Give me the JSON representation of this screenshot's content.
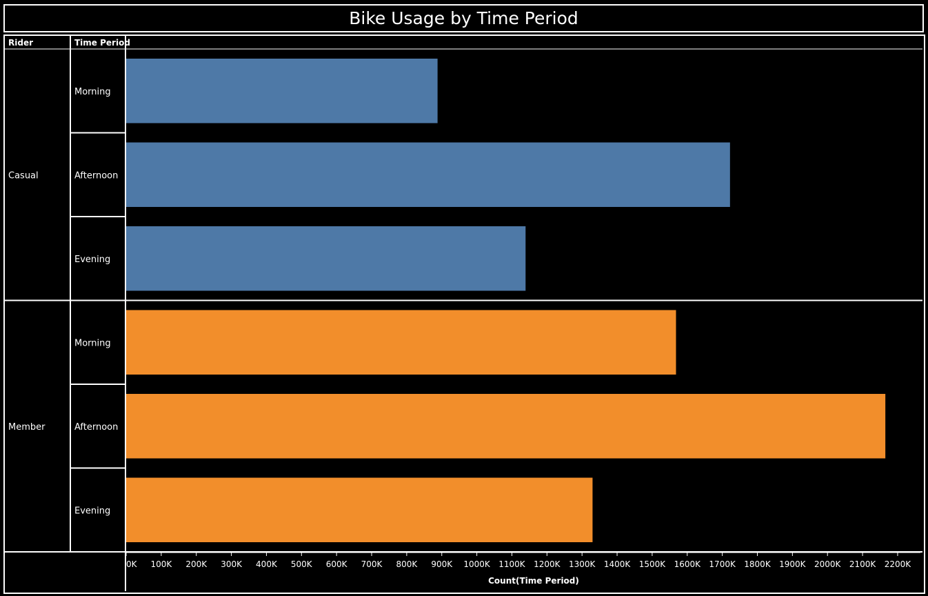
{
  "chart_data": {
    "type": "bar",
    "orientation": "horizontal",
    "title": "Bike Usage by Time Period",
    "row_headers": [
      "Rider",
      "Time Period"
    ],
    "groups": [
      {
        "name": "Casual",
        "color": "#4e79a7",
        "categories": [
          "Morning",
          "Afternoon",
          "Evening"
        ],
        "values": [
          888000,
          1722000,
          1139000
        ]
      },
      {
        "name": "Member",
        "color": "#f28e2b",
        "categories": [
          "Morning",
          "Afternoon",
          "Evening"
        ],
        "values": [
          1568000,
          2165000,
          1330000
        ]
      }
    ],
    "xlabel": "Count(Time Period)",
    "xlim": [
      0,
      2265000
    ],
    "xticks": [
      0,
      100000,
      200000,
      300000,
      400000,
      500000,
      600000,
      700000,
      800000,
      900000,
      1000000,
      1100000,
      1200000,
      1300000,
      1400000,
      1500000,
      1600000,
      1700000,
      1800000,
      1900000,
      2000000,
      2100000,
      2200000
    ],
    "xtick_labels": [
      "0K",
      "100K",
      "200K",
      "300K",
      "400K",
      "500K",
      "600K",
      "700K",
      "800K",
      "900K",
      "1000K",
      "1100K",
      "1200K",
      "1300K",
      "1400K",
      "1500K",
      "1600K",
      "1700K",
      "1800K",
      "1900K",
      "2000K",
      "2100K",
      "2200K"
    ],
    "grid": false,
    "background": "#000000"
  }
}
